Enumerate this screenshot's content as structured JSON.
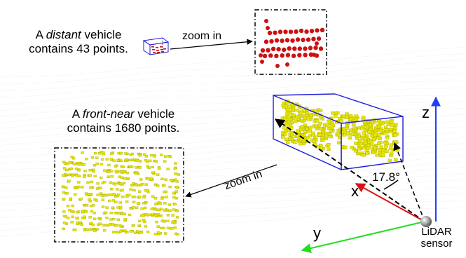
{
  "annotations": {
    "distant": {
      "prefix": "A ",
      "emph": "distant",
      "suffix": " vehicle",
      "line2": "contains 43 points."
    },
    "front_near": {
      "prefix": "A ",
      "emph": "front-near",
      "suffix": " vehicle",
      "line2": "contains 1680 points."
    },
    "zoom_top": "zoom in",
    "zoom_bottom": "zoom in",
    "angle": "17.8°",
    "axis_x": "x",
    "axis_y": "y",
    "axis_z": "z",
    "sensor_line1": "LiDAR",
    "sensor_line2": "sensor"
  },
  "colors": {
    "box_blue": "#1f1fd6",
    "point_yellow": "#e6e600",
    "point_red": "#cc1111",
    "axis_red": "#dd1111",
    "axis_green": "#22dd22",
    "axis_blue": "#1f3fff",
    "scan_gray": "#c8c8d4"
  },
  "icons": [
    "lidar-sensor-icon"
  ]
}
